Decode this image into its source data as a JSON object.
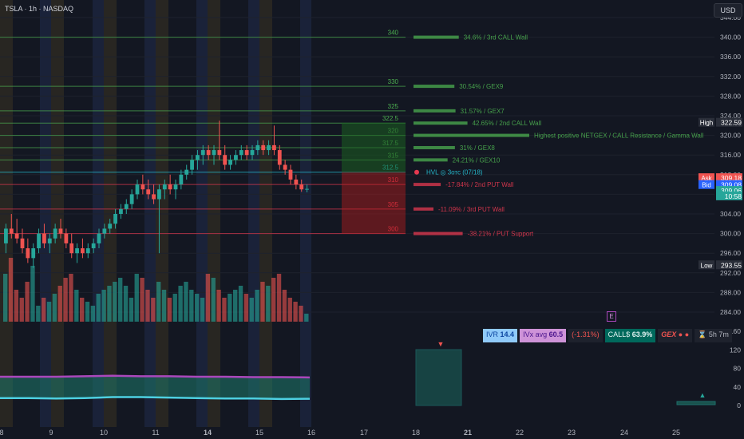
{
  "header": {
    "title": "TSLA · 1h · NASDAQ",
    "currency": "USD"
  },
  "colors": {
    "up": "#26a69a",
    "down": "#ef5350",
    "call": "#4caf50",
    "put": "#e53950",
    "hvl": "#26c6da",
    "ivx": "#ab47bc",
    "iv": "#4dd0e1",
    "fill": "#1e7a6b"
  },
  "chart_data": {
    "type": "candlestick",
    "symbol": "TSLA",
    "interval": "1h",
    "exchange": "NASDAQ",
    "ylim": [
      282,
      346
    ],
    "x_ticks": [
      "8",
      "9",
      "10",
      "11",
      "14",
      "15",
      "16",
      "17",
      "18",
      "21",
      "22",
      "23",
      "24",
      "25"
    ],
    "y_ticks": [
      "344.00",
      "340.00",
      "336.00",
      "332.00",
      "328.00",
      "324.00",
      "320.00",
      "316.00",
      "312.00",
      "308.00",
      "304.00",
      "300.00",
      "296.00",
      "292.00",
      "288.00",
      "284.00"
    ],
    "lower_y_ticks": [
      "160",
      "120",
      "80",
      "40",
      "0"
    ],
    "price_tags": [
      {
        "label": "High",
        "value": "322.59",
        "price": 322.59
      },
      {
        "label": "Ask",
        "value": "309.18",
        "price": 311.3
      },
      {
        "label": "Bid",
        "value": "309.08",
        "price": 309.9
      },
      {
        "label": "",
        "value": "309.06",
        "price": 308.7
      },
      {
        "label": "",
        "value": "10:58",
        "price": 307.6
      },
      {
        "label": "Low",
        "value": "293.55",
        "price": 293.55
      }
    ],
    "candles": [
      [
        298,
        302,
        296,
        301
      ],
      [
        301,
        304,
        299,
        300
      ],
      [
        300,
        303,
        298,
        299
      ],
      [
        299,
        301,
        296,
        297
      ],
      [
        297,
        299,
        294,
        295
      ],
      [
        295,
        298,
        293,
        297
      ],
      [
        297,
        301,
        296,
        300
      ],
      [
        300,
        302,
        297,
        298
      ],
      [
        298,
        300,
        296,
        299
      ],
      [
        299,
        302,
        298,
        301
      ],
      [
        301,
        303,
        299,
        300
      ],
      [
        300,
        301,
        297,
        298
      ],
      [
        298,
        300,
        295,
        296
      ],
      [
        296,
        298,
        294,
        297
      ],
      [
        297,
        299,
        295,
        296
      ],
      [
        296,
        298,
        295,
        297
      ],
      [
        297,
        299,
        296,
        298
      ],
      [
        298,
        301,
        297,
        300
      ],
      [
        300,
        302,
        299,
        301
      ],
      [
        301,
        303,
        300,
        302
      ],
      [
        302,
        305,
        301,
        304
      ],
      [
        304,
        306,
        303,
        305
      ],
      [
        305,
        307,
        304,
        306
      ],
      [
        306,
        309,
        305,
        308
      ],
      [
        308,
        311,
        307,
        310
      ],
      [
        310,
        312,
        308,
        309
      ],
      [
        309,
        311,
        307,
        308
      ],
      [
        308,
        310,
        306,
        307
      ],
      [
        307,
        310,
        296,
        309
      ],
      [
        309,
        311,
        307,
        310
      ],
      [
        310,
        312,
        308,
        309
      ],
      [
        309,
        311,
        307,
        310
      ],
      [
        310,
        313,
        309,
        312
      ],
      [
        312,
        314,
        311,
        313
      ],
      [
        313,
        316,
        312,
        315
      ],
      [
        315,
        317,
        313,
        316
      ],
      [
        316,
        318,
        314,
        317
      ],
      [
        317,
        318,
        315,
        316
      ],
      [
        316,
        318,
        314,
        317
      ],
      [
        317,
        323,
        315,
        316
      ],
      [
        316,
        318,
        313,
        314
      ],
      [
        314,
        316,
        313,
        315
      ],
      [
        315,
        317,
        314,
        316
      ],
      [
        316,
        318,
        315,
        317
      ],
      [
        317,
        318,
        315,
        316
      ],
      [
        316,
        318,
        315,
        317
      ],
      [
        317,
        319,
        316,
        318
      ],
      [
        318,
        319,
        316,
        317
      ],
      [
        317,
        319,
        316,
        318
      ],
      [
        318,
        322,
        316,
        317
      ],
      [
        317,
        318,
        313,
        314
      ],
      [
        314,
        315,
        312,
        313
      ],
      [
        313,
        314,
        310,
        311
      ],
      [
        311,
        312,
        309,
        310
      ],
      [
        310,
        311,
        308.5,
        309
      ],
      [
        309,
        310,
        308.4,
        309.1
      ]
    ],
    "volumes": [
      60,
      80,
      40,
      30,
      50,
      70,
      20,
      30,
      25,
      35,
      45,
      55,
      60,
      40,
      30,
      25,
      20,
      35,
      40,
      45,
      50,
      55,
      45,
      30,
      60,
      55,
      40,
      30,
      50,
      40,
      30,
      35,
      45,
      50,
      40,
      35,
      30,
      60,
      55,
      40,
      30,
      35,
      40,
      45,
      35,
      30,
      40,
      50,
      45,
      55,
      60,
      40,
      30,
      25,
      20,
      10
    ],
    "levels": [
      {
        "label": "340",
        "price": 340,
        "type": "call",
        "note": "34.6% / 3rd CALL Wall",
        "strength": 34.6
      },
      {
        "label": "330",
        "price": 330,
        "type": "call",
        "note": "30.54% / GEX9",
        "strength": 30.54
      },
      {
        "label": "325",
        "price": 325,
        "type": "call",
        "note": "31.57% / GEX7",
        "strength": 31.57
      },
      {
        "label": "322.5",
        "price": 322.5,
        "type": "call",
        "note": "42.65% / 2nd CALL Wall",
        "strength": 42.65
      },
      {
        "label": "320",
        "price": 320,
        "type": "call",
        "note": "Highest positive NETGEX / CALL Resistance / Gamma Wall",
        "strength": 100
      },
      {
        "label": "317.5",
        "price": 317.5,
        "type": "call",
        "note": "31% / GEX8",
        "strength": 31
      },
      {
        "label": "315",
        "price": 315,
        "type": "call",
        "note": "24.21% / GEX10",
        "strength": 24.21
      },
      {
        "label": "312.5",
        "price": 312.5,
        "type": "hvl",
        "note": "HVL ◎ 3отс (07/18)",
        "strength": 0
      },
      {
        "label": "310",
        "price": 310,
        "type": "put",
        "note": "-17.84% / 2nd PUT Wall",
        "strength": 17.84
      },
      {
        "label": "305",
        "price": 305,
        "type": "put",
        "note": "-11.09% / 3rd PUT Wall",
        "strength": 11.09
      },
      {
        "label": "300",
        "price": 300,
        "type": "put",
        "note": "-38.21% / PUT Support",
        "strength": 38.21
      }
    ],
    "indicator_bar": {
      "ivr_label": "IVR",
      "ivr_value": "14.4",
      "ivx_label": "IVx avg",
      "ivx_value": "60.5",
      "change": "(-1.31%)",
      "calls_label": "CALL$",
      "calls_value": "63.9%",
      "gex_label": "GEX",
      "timer": "5h 7m",
      "earnings_marker": "E"
    },
    "lower_series": {
      "ivx_avg": [
        62,
        62,
        62,
        63,
        64,
        63,
        63,
        62,
        62,
        61,
        61,
        60.5
      ],
      "iv": [
        16,
        16,
        15,
        16,
        18,
        18,
        17,
        16,
        15,
        15,
        14,
        14.4
      ]
    }
  }
}
